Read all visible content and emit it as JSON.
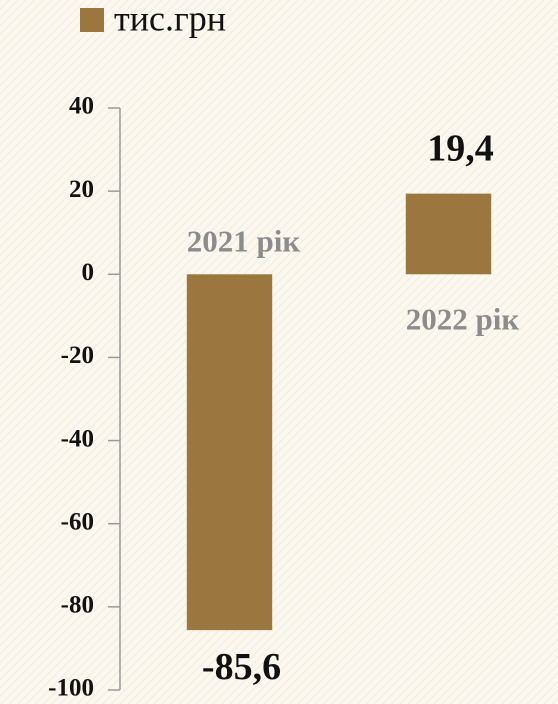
{
  "chart_data": {
    "type": "bar",
    "categories": [
      "2021 рік",
      "2022 рік"
    ],
    "series": [
      {
        "name": "тис.грн",
        "color": "#9b773f",
        "values": [
          -85.6,
          19.4
        ],
        "value_labels": [
          "-85,6",
          "19,4"
        ]
      }
    ],
    "ylim": [
      -100,
      40
    ],
    "yticks": [
      -100,
      -80,
      -60,
      -40,
      -20,
      0,
      20,
      40
    ],
    "legend": "top-left",
    "grid": false
  }
}
